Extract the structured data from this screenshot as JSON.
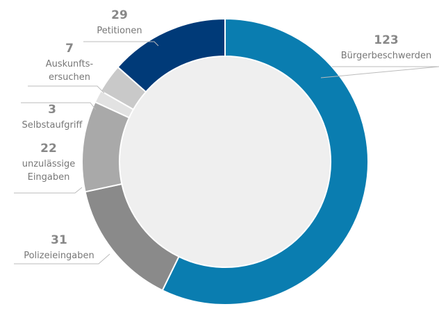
{
  "chart_data": {
    "type": "donut",
    "categories": [
      "Bürgerbeschwerden",
      "Polizeieingaben",
      "unzulässige\nEingaben",
      "Selbstaufgriff",
      "Auskunfts-\nersuchen",
      "Petitionen"
    ],
    "values": [
      123,
      31,
      22,
      3,
      7,
      29
    ],
    "colors": [
      "#0a7db0",
      "#8a8a8a",
      "#a9a9a9",
      "#e2e2e2",
      "#c9c9c9",
      "#003a78"
    ]
  }
}
